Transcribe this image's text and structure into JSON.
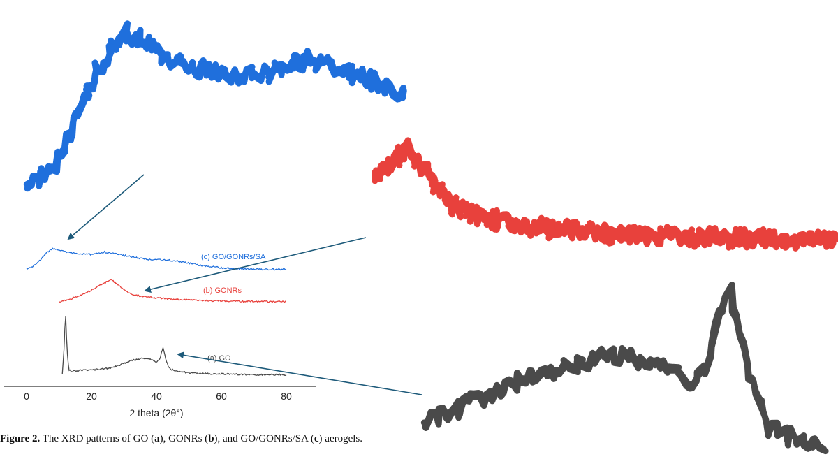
{
  "chart_data": {
    "type": "line",
    "xlabel": "2 theta (2θ°)",
    "xlim": [
      0,
      80
    ],
    "x_ticks": [
      "0",
      "20",
      "40",
      "60",
      "80"
    ],
    "series": [
      {
        "name": "(c) GO/GONRs/SA",
        "color": "#1f6fdc",
        "x": [
          0,
          2,
          4,
          6,
          8,
          10,
          12,
          14,
          16,
          18,
          20,
          22,
          24,
          26,
          28,
          30,
          32,
          34,
          36,
          38,
          40,
          42,
          44,
          46,
          48,
          50,
          52,
          54,
          56,
          58,
          60,
          62,
          64,
          66,
          68,
          70,
          72,
          74,
          76,
          78,
          80
        ],
        "y": [
          0.1,
          0.2,
          0.45,
          0.8,
          1.0,
          0.95,
          0.85,
          0.8,
          0.78,
          0.75,
          0.75,
          0.8,
          0.85,
          0.8,
          0.75,
          0.7,
          0.65,
          0.6,
          0.55,
          0.52,
          0.5,
          0.5,
          0.48,
          0.45,
          0.4,
          0.35,
          0.3,
          0.25,
          0.2,
          0.18,
          0.15,
          0.13,
          0.12,
          0.1,
          0.1,
          0.09,
          0.08,
          0.08,
          0.07,
          0.07,
          0.07
        ]
      },
      {
        "name": "(b) GONRs",
        "color": "#e8413c",
        "x": [
          10,
          12,
          14,
          16,
          18,
          20,
          22,
          24,
          26,
          28,
          30,
          32,
          34,
          36,
          38,
          40,
          42,
          44,
          46,
          48,
          50,
          52,
          54,
          56,
          58,
          60,
          62,
          64,
          66,
          68,
          70,
          72,
          74,
          76,
          78,
          80
        ],
        "y": [
          0.05,
          0.12,
          0.2,
          0.3,
          0.42,
          0.55,
          0.7,
          0.85,
          1.0,
          0.8,
          0.55,
          0.4,
          0.32,
          0.28,
          0.25,
          0.22,
          0.2,
          0.18,
          0.16,
          0.15,
          0.14,
          0.13,
          0.12,
          0.11,
          0.1,
          0.1,
          0.09,
          0.09,
          0.08,
          0.08,
          0.08,
          0.08,
          0.07,
          0.07,
          0.07,
          0.07
        ]
      },
      {
        "name": "(a) GO",
        "color": "#4a4a4a",
        "x": [
          11,
          11.5,
          12,
          12.5,
          13,
          14,
          16,
          18,
          20,
          22,
          24,
          26,
          28,
          30,
          32,
          34,
          36,
          38,
          40,
          41,
          42,
          43,
          44,
          46,
          48,
          50,
          54,
          58,
          62,
          66,
          70,
          74,
          78,
          80
        ],
        "y": [
          0.05,
          0.4,
          1.0,
          0.4,
          0.12,
          0.1,
          0.11,
          0.12,
          0.12,
          0.13,
          0.14,
          0.15,
          0.18,
          0.22,
          0.26,
          0.28,
          0.3,
          0.28,
          0.24,
          0.28,
          0.46,
          0.26,
          0.14,
          0.1,
          0.09,
          0.08,
          0.07,
          0.06,
          0.06,
          0.05,
          0.05,
          0.05,
          0.05,
          0.05
        ]
      }
    ]
  },
  "caption": {
    "lead": "Figure 2.",
    "parts": [
      "The XRD patterns of GO (",
      "a",
      "), GONRs (",
      "b",
      "), and GO/GONRs/SA (",
      "c",
      ") aerogels."
    ]
  }
}
